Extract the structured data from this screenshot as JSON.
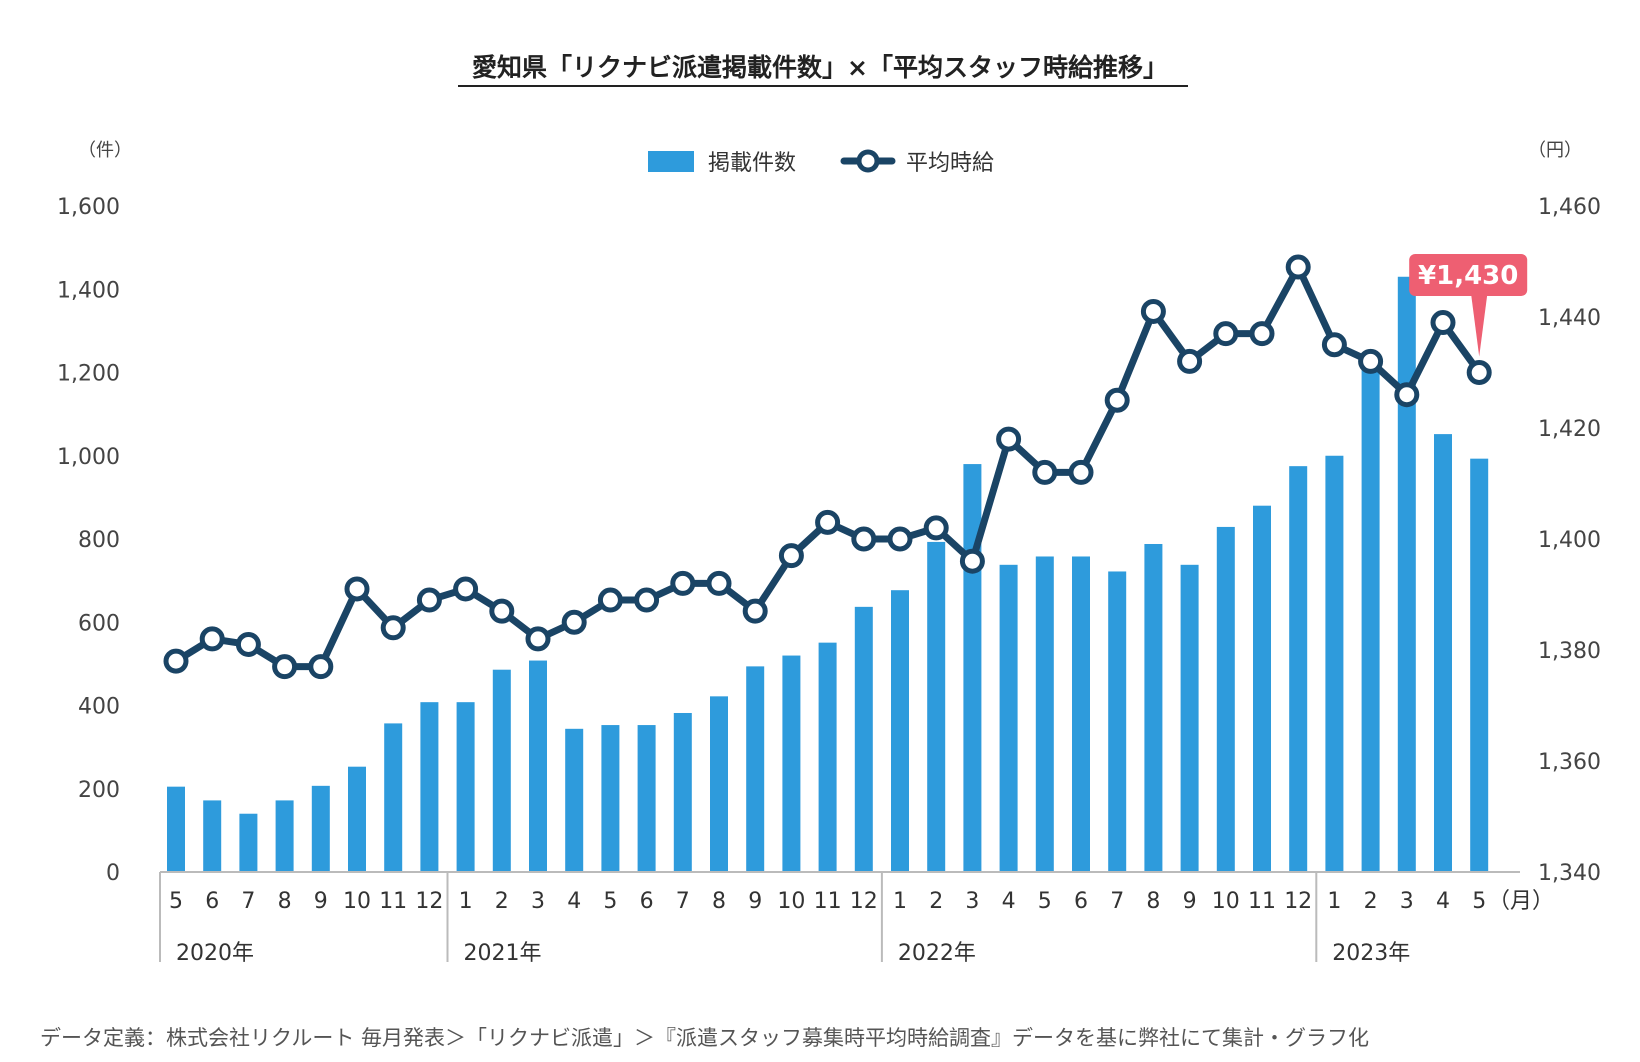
{
  "chart_data": {
    "type": "bar+line",
    "title": "愛知県「リクナビ派遣掲載件数」×「平均スタッフ時給推移」",
    "left_unit": "（件）",
    "right_unit": "（円）",
    "month_unit": "（月）",
    "left_axis": {
      "min": 0,
      "max": 1600,
      "ticks": [
        "0",
        "200",
        "400",
        "600",
        "800",
        "1,000",
        "1,200",
        "1,400",
        "1,600"
      ]
    },
    "right_axis": {
      "min": 1340,
      "max": 1460,
      "ticks": [
        "1,340",
        "1,360",
        "1,380",
        "1,400",
        "1,420",
        "1,440",
        "1,460"
      ]
    },
    "months": [
      "5",
      "6",
      "7",
      "8",
      "9",
      "10",
      "11",
      "12",
      "1",
      "2",
      "3",
      "4",
      "5",
      "6",
      "7",
      "8",
      "9",
      "10",
      "11",
      "12",
      "1",
      "2",
      "3",
      "4",
      "5",
      "6",
      "7",
      "8",
      "9",
      "10",
      "11",
      "12",
      "1",
      "2",
      "3",
      "4",
      "5"
    ],
    "years": [
      {
        "label": "2020年",
        "start": 0,
        "count": 8
      },
      {
        "label": "2021年",
        "start": 8,
        "count": 12
      },
      {
        "label": "2022年",
        "start": 20,
        "count": 12
      },
      {
        "label": "2023年",
        "start": 32,
        "count": 5
      }
    ],
    "series": [
      {
        "name": "掲載件数",
        "type": "bar",
        "axis": "left",
        "color": "#2e9bdc",
        "values": [
          205,
          172,
          140,
          172,
          207,
          253,
          357,
          408,
          408,
          486,
          508,
          344,
          353,
          353,
          382,
          422,
          494,
          520,
          551,
          637,
          677,
          793,
          980,
          738,
          758,
          758,
          722,
          788,
          738,
          829,
          880,
          975,
          1000,
          1225,
          1430,
          1052,
          993
        ]
      },
      {
        "name": "平均時給",
        "type": "line",
        "axis": "right",
        "color": "#1a4465",
        "values": [
          1378,
          1382,
          1381,
          1377,
          1377,
          1391,
          1384,
          1389,
          1391,
          1387,
          1382,
          1385,
          1389,
          1389,
          1392,
          1392,
          1387,
          1397,
          1403,
          1400,
          1400,
          1402,
          1396,
          1418,
          1412,
          1412,
          1425,
          1441,
          1432,
          1437,
          1437,
          1449,
          1435,
          1432,
          1426,
          1439,
          1430
        ]
      }
    ],
    "legend": [
      "掲載件数",
      "平均時給"
    ],
    "annotation": {
      "text": "¥1,430",
      "index": 36,
      "color": "#ee5f72"
    }
  },
  "footnote": "データ定義：株式会社リクルート 毎月発表＞「リクナビ派遣」＞『派遣スタッフ募集時平均時給調査』データを基に弊社にて集計・グラフ化"
}
